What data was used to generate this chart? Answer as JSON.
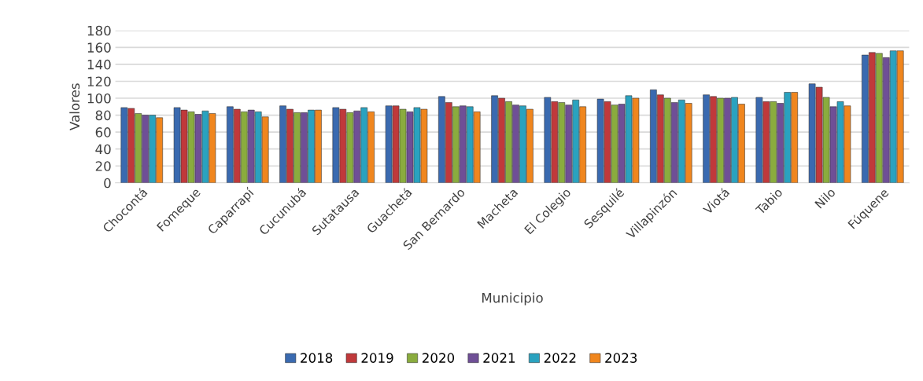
{
  "chart_data": {
    "type": "bar",
    "xlabel": "Municipio",
    "ylabel": "Valores",
    "categories": [
      "Chocontá",
      "Fomeque",
      "Caparrapí",
      "Cucunubá",
      "Sutatausa",
      "Guachetá",
      "San Bernardo",
      "Macheta",
      "El Colegio",
      "Sesquilé",
      "Villapinzón",
      "Viotá",
      "Tabio",
      "Nilo",
      "Fúquene"
    ],
    "series": [
      {
        "name": "2018",
        "color": "#3a6ab0",
        "values": [
          89,
          89,
          90,
          91,
          89,
          91,
          102,
          103,
          101,
          99,
          110,
          104,
          101,
          117,
          151
        ]
      },
      {
        "name": "2019",
        "color": "#c0393b",
        "values": [
          88,
          86,
          87,
          87,
          87,
          91,
          95,
          100,
          96,
          96,
          104,
          102,
          96,
          113,
          154
        ]
      },
      {
        "name": "2020",
        "color": "#8aac3e",
        "values": [
          82,
          84,
          84,
          83,
          83,
          87,
          90,
          96,
          95,
          92,
          100,
          100,
          96,
          101,
          153
        ]
      },
      {
        "name": "2021",
        "color": "#6f4f96",
        "values": [
          80,
          81,
          86,
          83,
          85,
          84,
          91,
          92,
          92,
          93,
          95,
          100,
          94,
          90,
          148
        ]
      },
      {
        "name": "2022",
        "color": "#2aa2bf",
        "values": [
          80,
          85,
          84,
          86,
          89,
          89,
          90,
          91,
          98,
          103,
          98,
          101,
          107,
          96,
          156
        ]
      },
      {
        "name": "2023",
        "color": "#f0861e",
        "values": [
          77,
          82,
          78,
          86,
          84,
          87,
          84,
          87,
          90,
          100,
          94,
          93,
          107,
          91,
          156
        ]
      }
    ],
    "ylim": [
      0,
      180
    ],
    "yticks": [
      0,
      20,
      40,
      60,
      80,
      100,
      120,
      140,
      160,
      180
    ],
    "grid": "y",
    "legend": "bottom"
  }
}
